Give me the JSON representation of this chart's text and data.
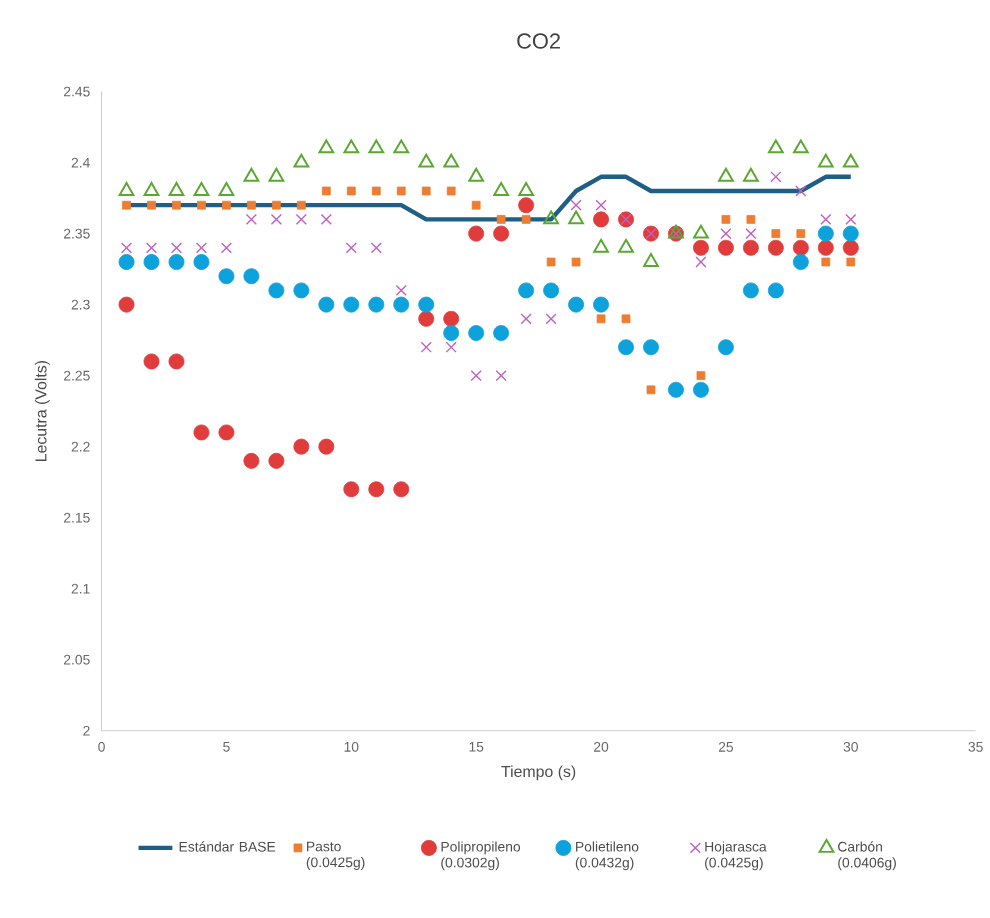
{
  "chart_data": {
    "type": "scatter",
    "title": "CO2",
    "xlabel": "Tiempo (s)",
    "ylabel": "Lecutra (Volts)",
    "x": [
      1,
      2,
      3,
      4,
      5,
      6,
      7,
      8,
      9,
      10,
      11,
      12,
      13,
      14,
      15,
      16,
      17,
      18,
      19,
      20,
      21,
      22,
      23,
      24,
      25,
      26,
      27,
      28,
      29,
      30
    ],
    "xlim": [
      0,
      35
    ],
    "xticks": [
      0,
      5,
      10,
      15,
      20,
      25,
      30,
      35
    ],
    "ylim": [
      2,
      2.45
    ],
    "yticks": [
      2,
      2.05,
      2.1,
      2.15,
      2.2,
      2.25,
      2.3,
      2.35,
      2.4,
      2.45
    ],
    "grid": false,
    "legend": "bottom",
    "series": [
      {
        "name": "Estándar BASE",
        "type": "line",
        "marker": "none",
        "color": "#1f5f86",
        "values": [
          2.37,
          2.37,
          2.37,
          2.37,
          2.37,
          2.37,
          2.37,
          2.37,
          2.37,
          2.37,
          2.37,
          2.37,
          2.36,
          2.36,
          2.36,
          2.36,
          2.36,
          2.36,
          2.38,
          2.39,
          2.39,
          2.38,
          2.38,
          2.38,
          2.38,
          2.38,
          2.38,
          2.38,
          2.39,
          2.39
        ]
      },
      {
        "name": "Pasto (0.0425g)",
        "marker": "square",
        "color": "#ed7d31",
        "values": [
          2.37,
          2.37,
          2.37,
          2.37,
          2.37,
          2.37,
          2.37,
          2.37,
          2.38,
          2.38,
          2.38,
          2.38,
          2.38,
          2.38,
          2.37,
          2.36,
          2.36,
          2.33,
          2.33,
          2.29,
          2.29,
          2.24,
          null,
          2.25,
          2.36,
          2.36,
          2.35,
          2.35,
          2.33,
          2.33
        ]
      },
      {
        "name": "Polipropileno (0.0302g)",
        "marker": "circle",
        "color": "#e03c3c",
        "values": [
          2.3,
          2.26,
          2.26,
          2.21,
          2.21,
          2.19,
          2.19,
          2.2,
          2.2,
          2.17,
          2.17,
          2.17,
          2.29,
          2.29,
          2.35,
          2.35,
          2.37,
          null,
          null,
          2.36,
          2.36,
          2.35,
          2.35,
          2.34,
          2.34,
          2.34,
          2.34,
          2.34,
          2.34,
          2.34
        ]
      },
      {
        "name": "Polietileno (0.0432g)",
        "marker": "circle",
        "color": "#0ea2dc",
        "values": [
          2.33,
          2.33,
          2.33,
          2.33,
          2.32,
          2.32,
          2.31,
          2.31,
          2.3,
          2.3,
          2.3,
          2.3,
          2.3,
          2.28,
          2.28,
          2.28,
          2.31,
          2.31,
          2.3,
          2.3,
          2.27,
          2.27,
          2.24,
          2.24,
          2.27,
          2.31,
          2.31,
          2.33,
          2.35,
          2.35
        ]
      },
      {
        "name": "Hojarasca (0.0425g)",
        "marker": "cross",
        "color": "#c060c0",
        "values": [
          2.34,
          2.34,
          2.34,
          2.34,
          2.34,
          2.36,
          2.36,
          2.36,
          2.36,
          2.34,
          2.34,
          2.31,
          2.27,
          2.27,
          2.25,
          2.25,
          2.29,
          2.29,
          2.37,
          2.37,
          2.36,
          2.35,
          2.35,
          2.33,
          2.35,
          2.35,
          2.39,
          2.38,
          2.36,
          2.36
        ]
      },
      {
        "name": "Carbón (0.0406g)",
        "marker": "triangle",
        "color": "#5aa832",
        "values": [
          2.38,
          2.38,
          2.38,
          2.38,
          2.38,
          2.39,
          2.39,
          2.4,
          2.41,
          2.41,
          2.41,
          2.41,
          2.4,
          2.4,
          2.39,
          2.38,
          2.38,
          2.36,
          2.36,
          2.34,
          2.34,
          2.33,
          2.35,
          2.35,
          2.39,
          2.39,
          2.41,
          2.41,
          2.4,
          2.4
        ]
      }
    ]
  }
}
